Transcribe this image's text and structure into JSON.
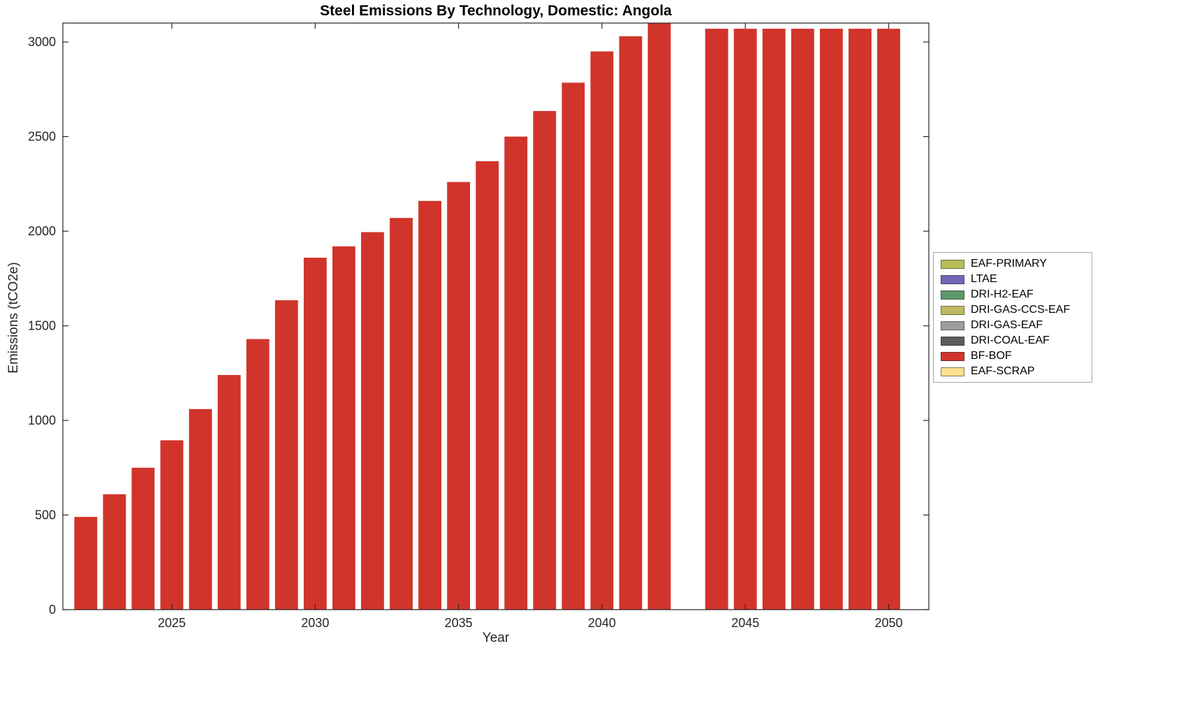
{
  "chart_data": {
    "type": "bar",
    "title": "Steel Emissions By Technology, Domestic: Angola",
    "xlabel": "Year",
    "ylabel": "Emissions (tCO2e)",
    "years": [
      2022,
      2023,
      2024,
      2025,
      2026,
      2027,
      2028,
      2029,
      2030,
      2031,
      2032,
      2033,
      2034,
      2035,
      2036,
      2037,
      2038,
      2039,
      2040,
      2041,
      2042,
      2043,
      2044,
      2045,
      2046,
      2047,
      2048,
      2049,
      2050
    ],
    "series": [
      {
        "name": "BF-BOF",
        "color": "#d1342b",
        "values": [
          490,
          610,
          750,
          895,
          1060,
          1240,
          1430,
          1635,
          1860,
          1920,
          1995,
          2070,
          2160,
          2260,
          2370,
          2500,
          2635,
          2785,
          2950,
          3030,
          3110,
          0,
          3070,
          3070,
          3070,
          3070,
          3070,
          3070,
          3070
        ]
      }
    ],
    "xlim": [
      2021.2,
      2051.4
    ],
    "ylim": [
      0,
      3100
    ],
    "xticks": [
      2025,
      2030,
      2035,
      2040,
      2045,
      2050
    ],
    "yticks": [
      0,
      500,
      1000,
      1500,
      2000,
      2500,
      3000
    ],
    "bar_width_years": 0.8,
    "grid": false,
    "legend_position": "right-outside",
    "legend": [
      {
        "label": "EAF-PRIMARY",
        "color": "#b8bd56"
      },
      {
        "label": "LTAE",
        "color": "#7166b8"
      },
      {
        "label": "DRI-H2-EAF",
        "color": "#5e9868"
      },
      {
        "label": "DRI-GAS-CCS-EAF",
        "color": "#bfb860"
      },
      {
        "label": "DRI-GAS-EAF",
        "color": "#9d9d9d"
      },
      {
        "label": "DRI-COAL-EAF",
        "color": "#5c5c5c"
      },
      {
        "label": "BF-BOF",
        "color": "#d1342b"
      },
      {
        "label": "EAF-SCRAP",
        "color": "#ffdf90"
      }
    ],
    "axis_color": "#262626"
  }
}
